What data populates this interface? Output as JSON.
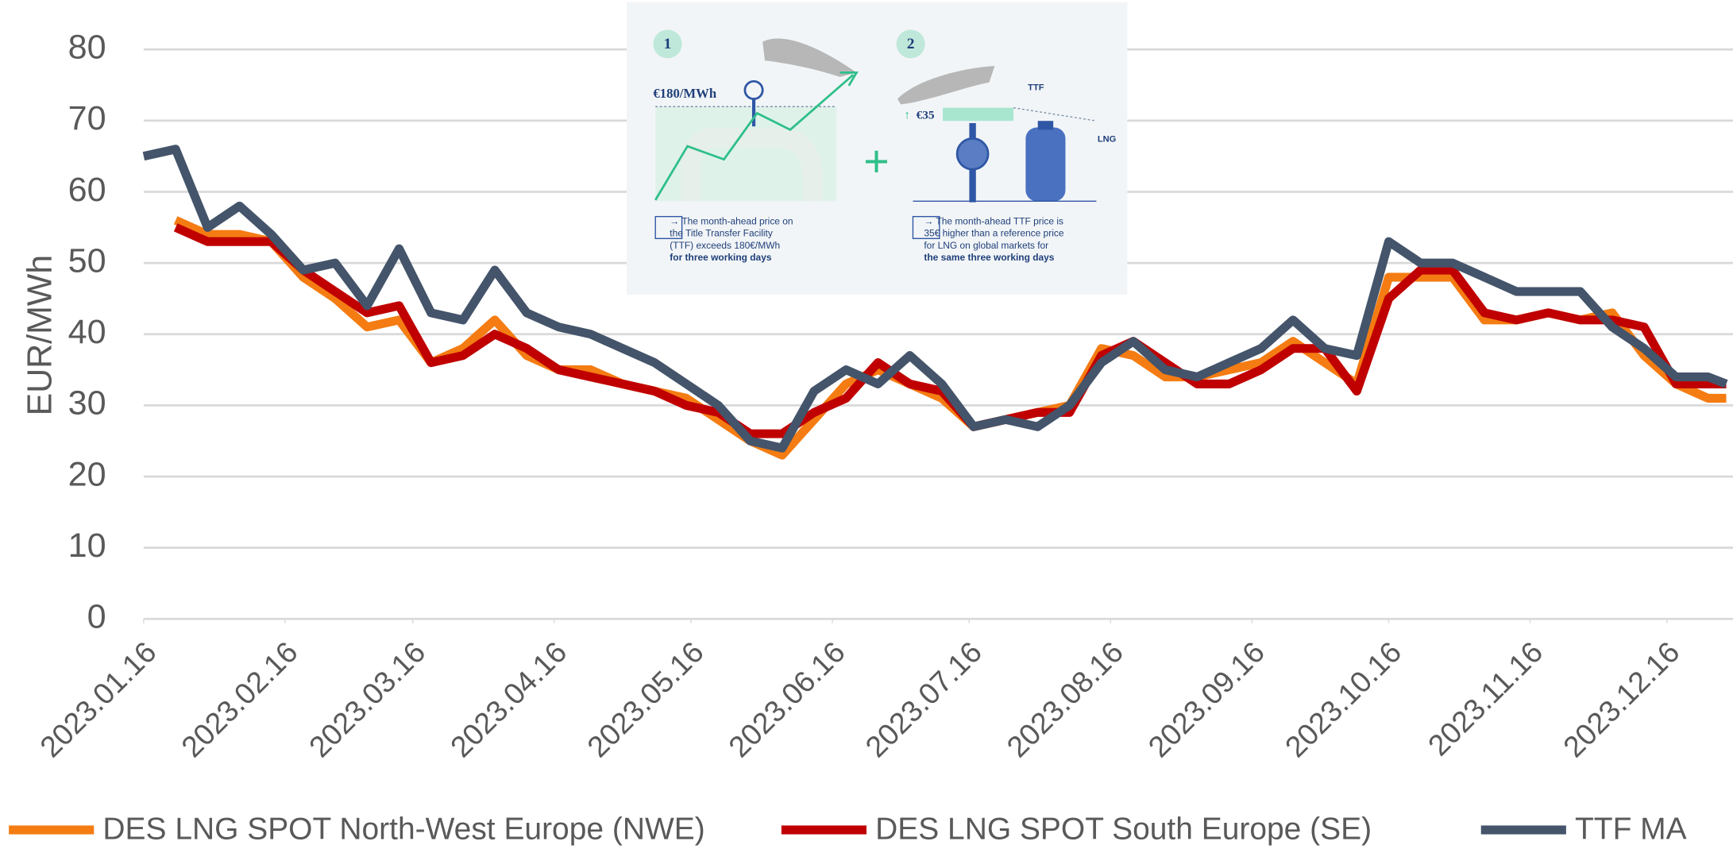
{
  "chart_data": {
    "type": "line",
    "y_label": "EUR/MWh",
    "x": [
      "2023.01.16",
      "2023.01.23",
      "2023.01.30",
      "2023.02.06",
      "2023.02.13",
      "2023.02.20",
      "2023.02.27",
      "2023.03.06",
      "2023.03.13",
      "2023.03.20",
      "2023.03.27",
      "2023.04.03",
      "2023.04.10",
      "2023.04.17",
      "2023.04.24",
      "2023.05.01",
      "2023.05.08",
      "2023.05.15",
      "2023.05.22",
      "2023.05.29",
      "2023.06.05",
      "2023.06.12",
      "2023.06.19",
      "2023.06.26",
      "2023.07.03",
      "2023.07.10",
      "2023.07.17",
      "2023.07.24",
      "2023.07.31",
      "2023.08.07",
      "2023.08.14",
      "2023.08.21",
      "2023.08.28",
      "2023.09.04",
      "2023.09.11",
      "2023.09.18",
      "2023.09.25",
      "2023.10.02",
      "2023.10.09",
      "2023.10.16",
      "2023.10.23",
      "2023.10.30",
      "2023.11.06",
      "2023.11.13",
      "2023.11.20",
      "2023.11.27",
      "2023.12.04",
      "2023.12.11",
      "2023.12.18",
      "2023.12.25",
      "2023.12.29"
    ],
    "series": [
      {
        "name": "DES LNG SPOT North-West Europe (NWE)",
        "color": "#f47c12",
        "values": [
          null,
          56,
          54,
          54,
          53,
          48,
          45,
          41,
          42,
          36,
          38,
          42,
          37,
          35,
          35,
          33,
          32,
          31,
          28,
          25,
          23,
          28,
          33,
          35,
          33,
          31,
          27,
          28,
          29,
          30,
          38,
          37,
          34,
          34,
          35,
          36,
          39,
          36,
          33,
          48,
          48,
          48,
          42,
          42,
          43,
          42,
          43,
          37,
          33,
          31,
          31
        ]
      },
      {
        "name": "DES LNG SPOT South Europe (SE)",
        "color": "#c00000",
        "values": [
          null,
          55,
          53,
          53,
          53,
          49,
          46,
          43,
          44,
          36,
          37,
          40,
          38,
          35,
          34,
          33,
          32,
          30,
          29,
          26,
          26,
          29,
          31,
          36,
          33,
          32,
          27,
          28,
          29,
          29,
          37,
          39,
          36,
          33,
          33,
          35,
          38,
          38,
          32,
          45,
          49,
          49,
          43,
          42,
          43,
          42,
          42,
          41,
          33,
          33,
          33
        ]
      },
      {
        "name": "TTF MA",
        "color": "#44546a",
        "values": [
          65,
          66,
          55,
          58,
          54,
          49,
          50,
          44,
          52,
          43,
          42,
          49,
          43,
          41,
          40,
          38,
          36,
          33,
          30,
          25,
          24,
          32,
          35,
          33,
          37,
          33,
          27,
          28,
          27,
          30,
          36,
          39,
          35,
          34,
          36,
          38,
          42,
          38,
          37,
          53,
          50,
          50,
          48,
          46,
          46,
          46,
          41,
          38,
          34,
          34,
          33
        ]
      }
    ],
    "xlim": [
      "2023.01.16",
      "2023.12.30"
    ],
    "xticks": [
      "2023.01.16",
      "2023.02.16",
      "2023.03.16",
      "2023.04.16",
      "2023.05.16",
      "2023.06.16",
      "2023.07.16",
      "2023.08.16",
      "2023.09.16",
      "2023.10.16",
      "2023.11.16",
      "2023.12.16"
    ],
    "ylim": [
      0,
      80
    ],
    "yticks": [
      0,
      10,
      20,
      30,
      40,
      50,
      60,
      70,
      80
    ],
    "grid": true,
    "legend": "bottom"
  },
  "inset": {
    "step1": {
      "number": "1",
      "price": "€180/MWh",
      "text": [
        "→ The month-ahead price on",
        "the Title Transfer Facility",
        "(TTF) exceeds 180€/MWh",
        "for three working days"
      ]
    },
    "step2": {
      "number": "2",
      "ttf": "TTF",
      "premium": "€35",
      "lng": "LNG",
      "text": [
        "→ The month-ahead TTF price is",
        "35€ higher than a reference price",
        "for LNG on global markets for",
        "the same three working days"
      ]
    },
    "plus": "+"
  }
}
